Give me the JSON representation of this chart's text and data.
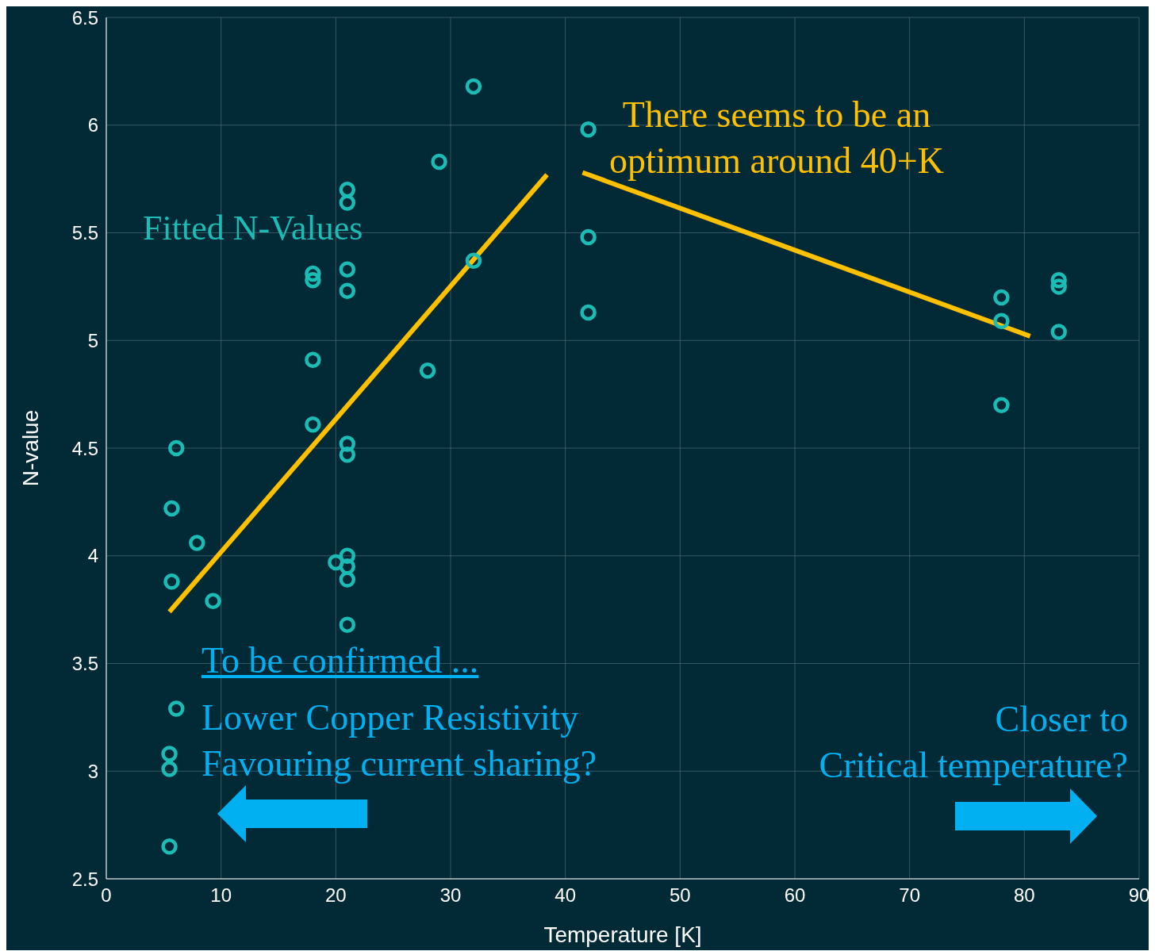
{
  "chart_data": {
    "type": "scatter",
    "xlabel": "Temperature [K]",
    "ylabel": "N-value",
    "xlim": [
      0,
      90
    ],
    "xticks": [
      0,
      10,
      20,
      30,
      40,
      50,
      60,
      70,
      80,
      90
    ],
    "ylim": [
      2.5,
      6.5
    ],
    "yticks": [
      2.5,
      3,
      3.5,
      4,
      4.5,
      5,
      5.5,
      6,
      6.5
    ],
    "grid": true,
    "legend": false,
    "series": [
      {
        "name": "Fitted N-Values",
        "marker": "circle",
        "color": "#1bbcb6",
        "x": [
          6.1,
          5.7,
          7.9,
          5.7,
          9.3,
          6.1,
          5.5,
          5.5,
          5.5,
          18,
          18,
          18,
          18,
          21,
          21,
          21,
          21,
          21,
          21,
          21,
          20,
          21,
          21,
          21,
          28,
          29,
          32,
          32,
          42,
          42,
          42,
          78,
          78,
          78,
          83,
          83,
          83
        ],
        "values": [
          4.5,
          4.22,
          4.06,
          3.88,
          3.79,
          3.29,
          3.08,
          3.01,
          2.65,
          5.31,
          5.28,
          4.91,
          4.61,
          5.7,
          5.64,
          5.33,
          5.23,
          4.52,
          4.47,
          4.0,
          3.97,
          3.95,
          3.89,
          3.68,
          4.86,
          5.83,
          6.18,
          5.37,
          5.98,
          5.48,
          5.13,
          5.2,
          5.09,
          4.7,
          5.28,
          5.25,
          5.04
        ]
      },
      {
        "type": "line",
        "marker": "none",
        "line_style": "solid",
        "color": "#ffc000",
        "x": [
          5.5,
          38.4
        ],
        "values": [
          3.74,
          5.77
        ]
      },
      {
        "type": "line",
        "marker": "none",
        "line_style": "solid",
        "color": "#ffc000",
        "x": [
          41.5,
          80.5
        ],
        "values": [
          5.78,
          5.02
        ]
      }
    ],
    "annotations": [
      "There seems to be an\noptimum around 40+K",
      "To be confirmed ...",
      "Lower Copper Resistivity\nFavouring current sharing?",
      "Closer to\nCritical temperature?"
    ]
  }
}
